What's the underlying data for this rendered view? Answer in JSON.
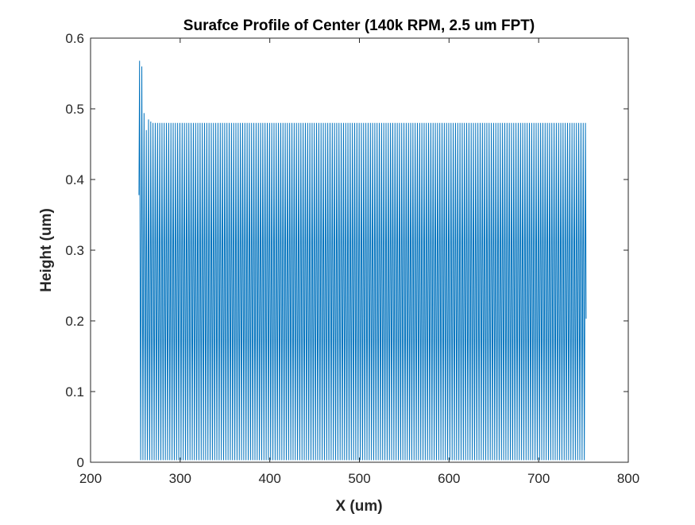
{
  "chart_data": {
    "type": "line",
    "title": "Surafce Profile of Center (140k RPM, 2.5 um FPT)",
    "xlabel": "X (um)",
    "ylabel": "Height (um)",
    "xlim": [
      200,
      800
    ],
    "ylim": [
      0,
      0.6
    ],
    "xticks": [
      200,
      300,
      400,
      500,
      600,
      700,
      800
    ],
    "yticks": [
      0,
      0.1,
      0.2,
      0.3,
      0.4,
      0.5,
      0.6
    ],
    "xtick_labels": [
      "200",
      "300",
      "400",
      "500",
      "600",
      "700",
      "800"
    ],
    "ytick_labels": [
      "0",
      "0.1",
      "0.2",
      "0.3",
      "0.4",
      "0.5",
      "0.6"
    ],
    "grid": false,
    "series": [
      {
        "color": "#0072BD",
        "x_start": 254,
        "x_end": 753,
        "period": 2.5,
        "trough": 0.003,
        "steady_peak": 0.48,
        "initial_peaks": [
          0.568,
          0.56,
          0.494,
          0.47,
          0.485,
          0.482
        ],
        "start_value": 0.378,
        "end_value": 0.203
      }
    ]
  }
}
